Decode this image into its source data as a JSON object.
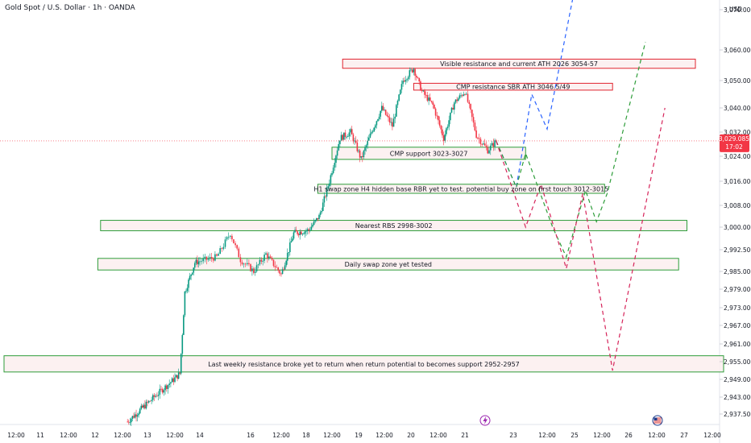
{
  "header": {
    "title": "Gold Spot / U.S. Dollar · 1h · OANDA",
    "currency": "USD"
  },
  "current_price": {
    "value": 3029.085,
    "label": "3,029.085",
    "countdown": "17:02",
    "color": "#f23645"
  },
  "colors": {
    "up": "#089981",
    "down": "#f23645",
    "support_border": "#2e9d3a",
    "support_fill": "#fbeeee",
    "resistance_border": "#e0242f",
    "resistance_fill": "#fbeeee",
    "path_blue": "#2962ff",
    "path_green": "#2e9d3a",
    "path_red": "#d6245a"
  },
  "chart_data": {
    "type": "candlestick",
    "y_axis": {
      "ticks": [
        3070,
        3060,
        3050,
        3040,
        3032,
        3024,
        3016,
        3008,
        3000,
        2992.5,
        2985,
        2979,
        2973,
        2967,
        2961,
        2955,
        2949,
        2943,
        2937.5
      ],
      "tick_labels": [
        "3,070.000",
        "3,060.000",
        "3,050.000",
        "3,040.000",
        "3,032.000",
        "3,024.000",
        "3,016.000",
        "3,008.000",
        "3,000.000",
        "2,992.500",
        "2,985.000",
        "2,979.000",
        "2,973.000",
        "2,967.000",
        "2,961.000",
        "2,955.000",
        "2,949.000",
        "2,943.000",
        "2,937.500"
      ]
    },
    "x_axis": {
      "ticks": [
        {
          "label": "12:00",
          "x": 0
        },
        {
          "label": "11",
          "x": 1
        },
        {
          "label": "12:00",
          "x": 2
        },
        {
          "label": "12",
          "x": 3
        },
        {
          "label": "12:00",
          "x": 4
        },
        {
          "label": "13",
          "x": 5
        },
        {
          "label": "12:00",
          "x": 6
        },
        {
          "label": "14",
          "x": 7
        },
        {
          "label": "16",
          "x": 8.5
        },
        {
          "label": "12:00",
          "x": 9.5
        },
        {
          "label": "18",
          "x": 10.5
        },
        {
          "label": "12:00",
          "x": 11.5
        },
        {
          "label": "19",
          "x": 12.5
        },
        {
          "label": "12:00",
          "x": 13.5
        },
        {
          "label": "20",
          "x": 14.5
        },
        {
          "label": "12:00",
          "x": 15.5
        },
        {
          "label": "21",
          "x": 16.5
        },
        {
          "label": "23",
          "x": 18.2
        },
        {
          "label": "12:00",
          "x": 19.3
        },
        {
          "label": "25",
          "x": 20.3
        },
        {
          "label": "12:00",
          "x": 21.3
        },
        {
          "label": "26",
          "x": 22.3
        },
        {
          "label": "12:00",
          "x": 23.3
        },
        {
          "label": "27",
          "x": 24.3
        },
        {
          "label": "12:00",
          "x": 25.3
        }
      ]
    },
    "candles_key_points": [
      {
        "x": 4.2,
        "y": 2935
      },
      {
        "x": 5.0,
        "y": 2941
      },
      {
        "x": 5.6,
        "y": 2946
      },
      {
        "x": 6.2,
        "y": 2951
      },
      {
        "x": 6.4,
        "y": 2978
      },
      {
        "x": 6.8,
        "y": 2988
      },
      {
        "x": 7.5,
        "y": 2990
      },
      {
        "x": 7.9,
        "y": 2998
      },
      {
        "x": 8.2,
        "y": 2989
      },
      {
        "x": 8.6,
        "y": 2985
      },
      {
        "x": 9.0,
        "y": 2991
      },
      {
        "x": 9.5,
        "y": 2984
      },
      {
        "x": 10.0,
        "y": 2998
      },
      {
        "x": 10.6,
        "y": 2999
      },
      {
        "x": 11.0,
        "y": 3004
      },
      {
        "x": 11.4,
        "y": 3016
      },
      {
        "x": 11.8,
        "y": 3030
      },
      {
        "x": 12.2,
        "y": 3032
      },
      {
        "x": 12.6,
        "y": 3023
      },
      {
        "x": 13.0,
        "y": 3032
      },
      {
        "x": 13.4,
        "y": 3040
      },
      {
        "x": 13.8,
        "y": 3034
      },
      {
        "x": 14.2,
        "y": 3050
      },
      {
        "x": 14.6,
        "y": 3054
      },
      {
        "x": 14.9,
        "y": 3046
      },
      {
        "x": 15.3,
        "y": 3041
      },
      {
        "x": 15.7,
        "y": 3030
      },
      {
        "x": 16.1,
        "y": 3042
      },
      {
        "x": 16.5,
        "y": 3046
      },
      {
        "x": 16.9,
        "y": 3031
      },
      {
        "x": 17.3,
        "y": 3026
      },
      {
        "x": 17.6,
        "y": 3029.085
      }
    ],
    "zones": [
      {
        "id": "ath",
        "label": "Visible resistance and current ATH 2026 3054-57",
        "x0": 11.9,
        "x1": 24.7,
        "y0": 3054,
        "y1": 3057,
        "kind": "resistance"
      },
      {
        "id": "sbr",
        "label": "CMP resistance SBR ATH 3046.5/49",
        "x0": 14.6,
        "x1": 21.7,
        "y0": 3046.5,
        "y1": 3049,
        "kind": "resistance"
      },
      {
        "id": "cmp",
        "label": "CMP support 3023-3027",
        "x0": 11.5,
        "x1": 18.6,
        "y0": 3023,
        "y1": 3027,
        "kind": "support"
      },
      {
        "id": "h1",
        "label": "H1 swap zone H4 hidden base RBR yet to test. potential buy zone on first touch 3012-3015",
        "x0": 10.95,
        "x1": 21.4,
        "y0": 3012,
        "y1": 3015,
        "kind": "support"
      },
      {
        "id": "rbs",
        "label": "Nearest RBS 2998-3002",
        "x0": 3.2,
        "x1": 24.4,
        "y0": 2998.8,
        "y1": 3002.5,
        "kind": "support"
      },
      {
        "id": "daily",
        "label": "Daily swap zone yet tested",
        "x0": 3.1,
        "x1": 24.1,
        "y0": 2985.5,
        "y1": 2989.5,
        "kind": "support"
      },
      {
        "id": "weekly",
        "label": "Last weekly resistance broke yet to return when return potential to becomes support 2952-2957",
        "x0": -0.5,
        "x1": 25.7,
        "y0": 2951.5,
        "y1": 2957,
        "kind": "support"
      }
    ],
    "projections": [
      {
        "name": "blue",
        "color": "#2962ff",
        "points": [
          [
            17.6,
            3029
          ],
          [
            18.3,
            3014
          ],
          [
            18.8,
            3045
          ],
          [
            19.3,
            3033
          ],
          [
            20.3,
            3075
          ]
        ]
      },
      {
        "name": "green",
        "color": "#2e9d3a",
        "points": [
          [
            17.6,
            3029
          ],
          [
            18.3,
            3014
          ],
          [
            18.6,
            3025
          ],
          [
            19.5,
            3000
          ],
          [
            20.0,
            2990
          ],
          [
            20.7,
            3013
          ],
          [
            21.1,
            3002
          ],
          [
            21.5,
            3012
          ],
          [
            22.9,
            3062
          ]
        ]
      },
      {
        "name": "red",
        "color": "#d6245a",
        "points": [
          [
            17.6,
            3029
          ],
          [
            18.6,
            3000
          ],
          [
            19.1,
            3015
          ],
          [
            20.0,
            2986
          ],
          [
            20.6,
            3012
          ],
          [
            21.7,
            2952
          ],
          [
            23.6,
            3040
          ]
        ]
      }
    ]
  }
}
